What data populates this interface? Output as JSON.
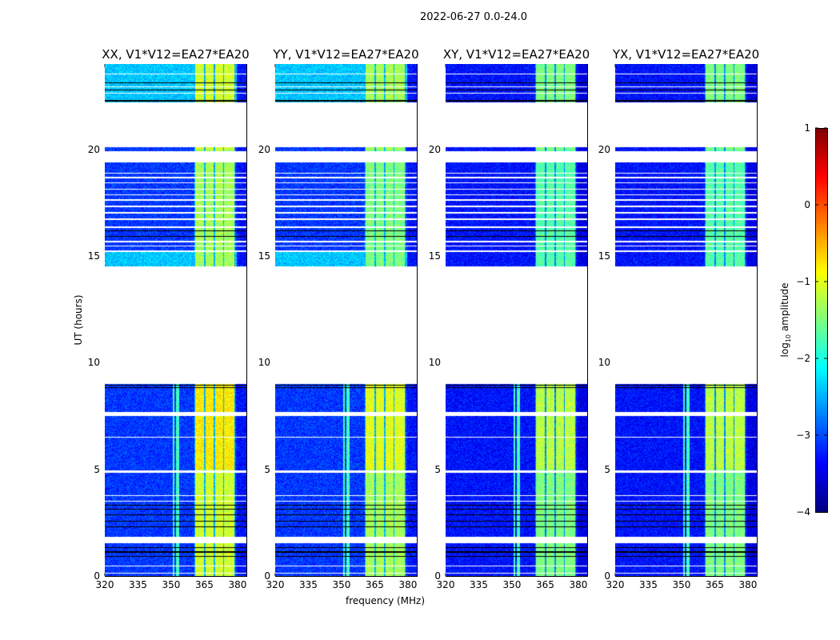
{
  "chart_data": {
    "type": "heatmap",
    "title": "2022-06-27 0.0-24.0",
    "xlabel": "frequency (MHz)",
    "ylabel": "UT (hours)",
    "xlim": [
      320,
      384
    ],
    "ylim": [
      0,
      24
    ],
    "xticks": [
      320,
      335,
      350,
      365,
      380
    ],
    "yticks": [
      0,
      5,
      10,
      15,
      20
    ],
    "data_time_ranges": [
      [
        0,
        9.0
      ],
      [
        14.5,
        16.3
      ],
      [
        16.4,
        19.4
      ],
      [
        19.9,
        20.1
      ],
      [
        22.2,
        24
      ]
    ],
    "white_flag_lines": [
      [
        0.1,
        0.15
      ],
      [
        0.45,
        0.5
      ],
      [
        1.55,
        1.85
      ],
      [
        3.5,
        3.53
      ],
      [
        3.62,
        3.65
      ],
      [
        3.75,
        3.78
      ],
      [
        4.6,
        4.63
      ],
      [
        4.85,
        4.95
      ],
      [
        6.5,
        6.53
      ],
      [
        7.5,
        7.7
      ],
      [
        15.2,
        15.25
      ],
      [
        15.45,
        15.5
      ],
      [
        15.65,
        15.7
      ],
      [
        16.7,
        16.75
      ],
      [
        17.0,
        17.05
      ],
      [
        17.3,
        17.35
      ],
      [
        17.6,
        17.65
      ],
      [
        17.85,
        17.9
      ],
      [
        18.1,
        18.14
      ],
      [
        18.4,
        18.45
      ],
      [
        18.65,
        18.7
      ],
      [
        18.85,
        18.9
      ],
      [
        22.6,
        22.65
      ],
      [
        22.9,
        22.95
      ],
      [
        23.5,
        23.55
      ]
    ],
    "black_flag_lines": [
      [
        0.9,
        0.95
      ],
      [
        1.1,
        1.15
      ],
      [
        1.3,
        1.35
      ],
      [
        2.3,
        2.34
      ],
      [
        2.55,
        2.59
      ],
      [
        2.85,
        2.89
      ],
      [
        3.1,
        3.14
      ],
      [
        3.3,
        3.34
      ],
      [
        8.8,
        8.84
      ],
      [
        8.92,
        8.96
      ],
      [
        15.9,
        15.94
      ],
      [
        16.15,
        16.19
      ],
      [
        22.25,
        22.3
      ],
      [
        22.75,
        22.8
      ],
      [
        23.1,
        23.15
      ]
    ],
    "signal_bands_mhz": [
      [
        361,
        365
      ],
      [
        365.5,
        369
      ],
      [
        370,
        373.5
      ],
      [
        374,
        378.5
      ]
    ],
    "rfi_lines_mhz": [
      351,
      352.5,
      353.2
    ],
    "panels": [
      {
        "title": "XX, V1*V12=EA27*EA20",
        "background": -3.1,
        "band_level": -1.1,
        "bright_hours": [
          [
            14.5,
            15.2
          ],
          [
            22.2,
            24
          ]
        ],
        "bright_level": -2.4
      },
      {
        "title": "YY, V1*V12=EA27*EA20",
        "background": -3.1,
        "band_level": -1.3,
        "bright_hours": [
          [
            14.5,
            15.2
          ],
          [
            22.2,
            24
          ]
        ],
        "bright_level": -2.4
      },
      {
        "title": "XY, V1*V12=EA27*EA20",
        "background": -3.3,
        "band_level": -1.5,
        "bright_hours": [],
        "bright_level": -3.3
      },
      {
        "title": "YX, V1*V12=EA27*EA20",
        "background": -3.3,
        "band_level": -1.5,
        "bright_hours": [],
        "bright_level": -3.3
      }
    ],
    "colorbar": {
      "label_prefix": "log",
      "label_sub": "10",
      "label_suffix": " amplitude",
      "range": [
        -4,
        1
      ],
      "ticks": [
        "-4",
        "-3",
        "-2",
        "-1",
        "0",
        "1"
      ],
      "colormap": "jet"
    }
  }
}
